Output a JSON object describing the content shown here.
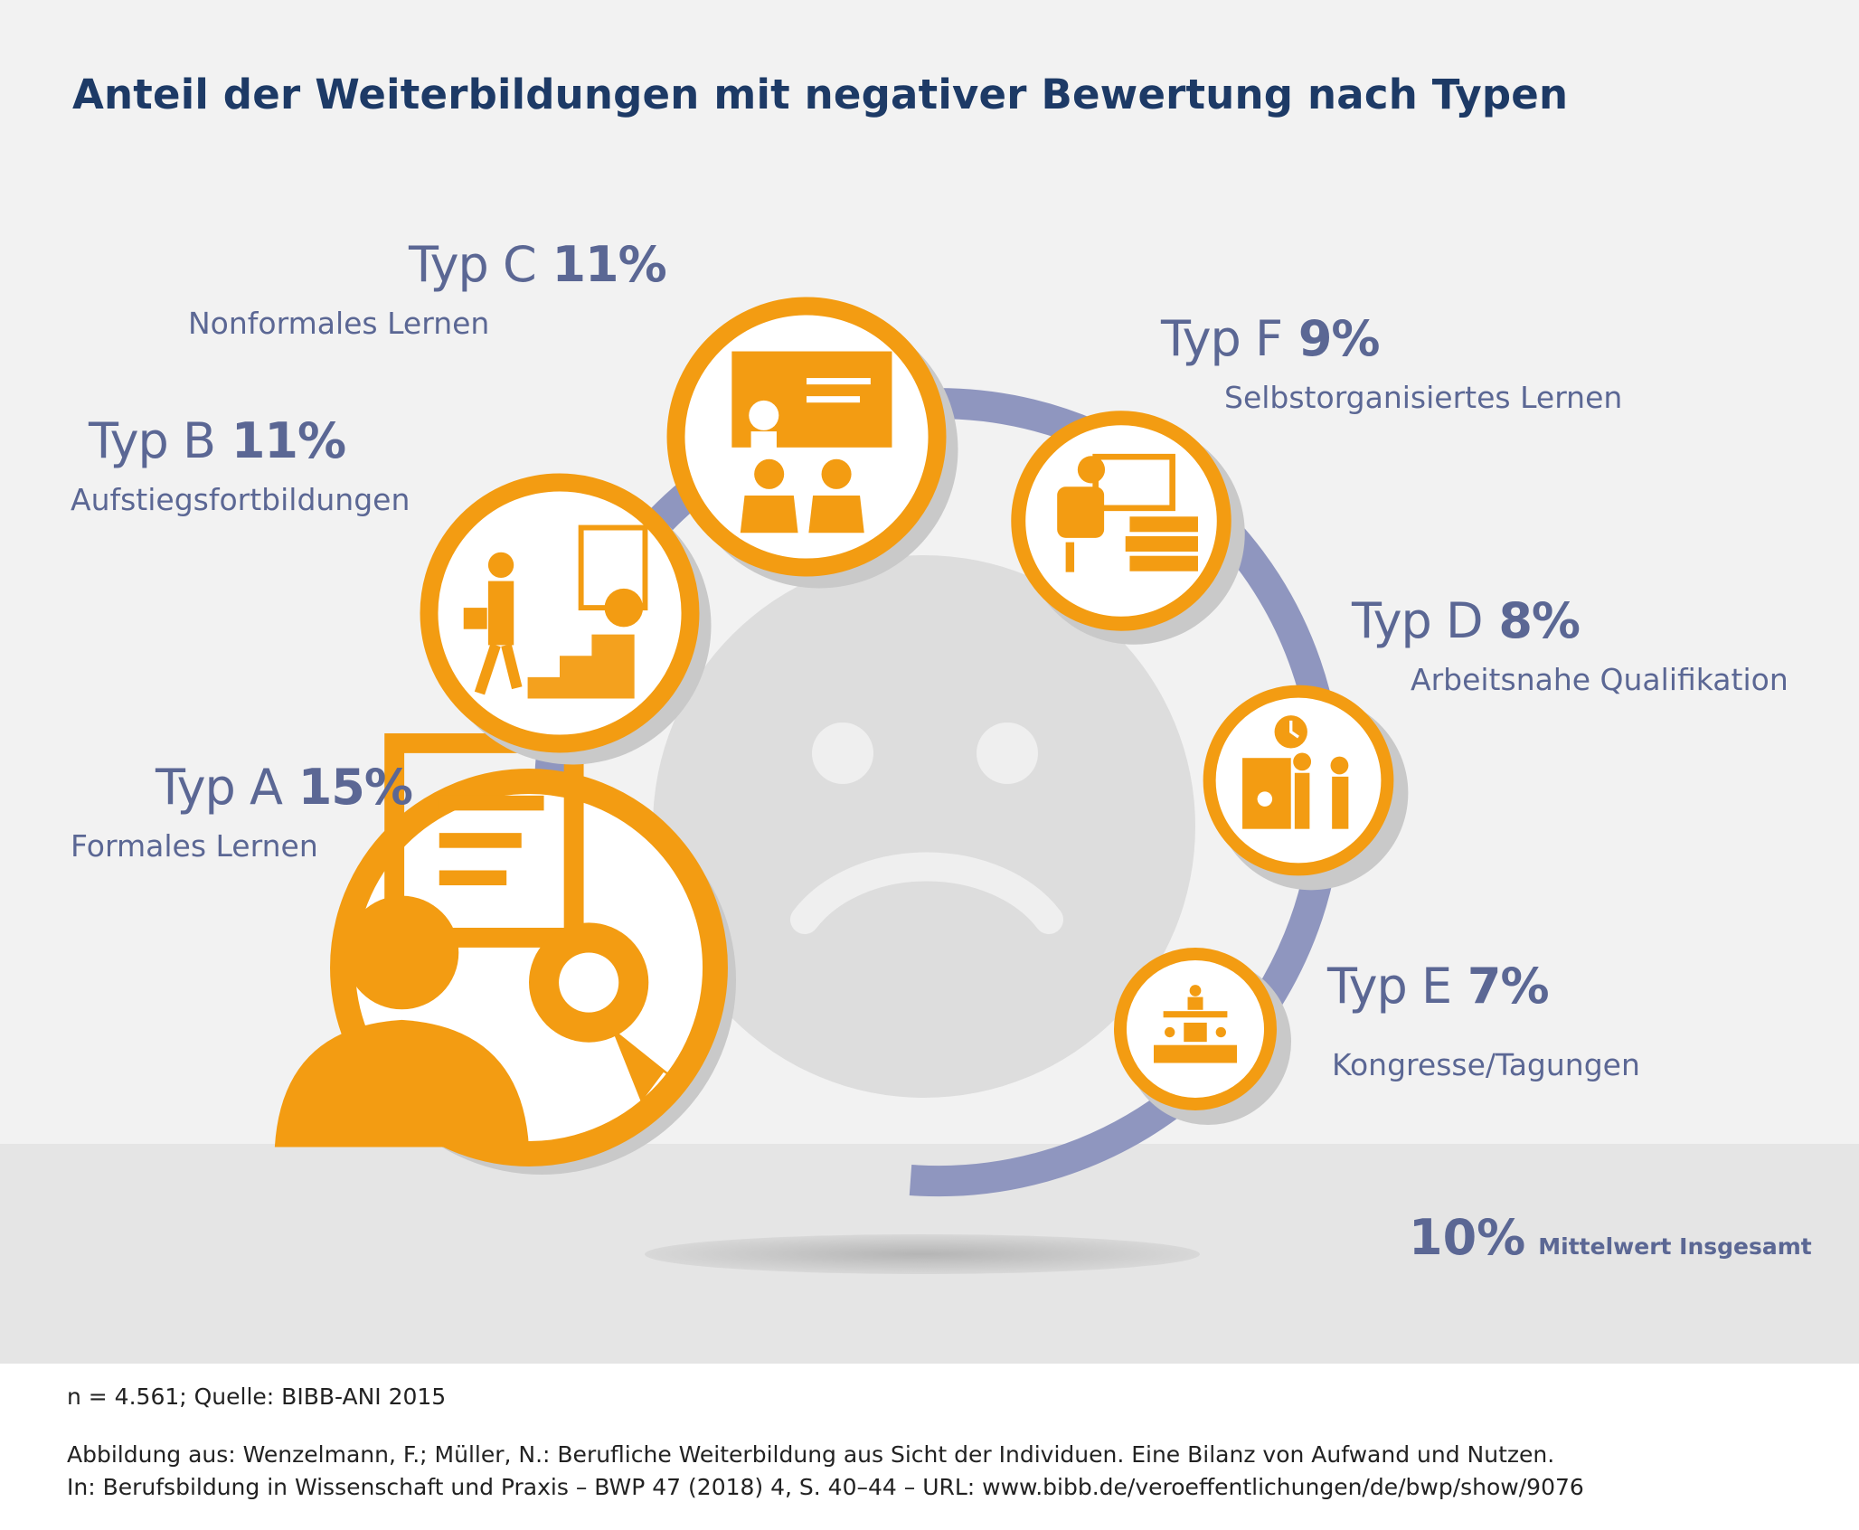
{
  "title": "Anteil der Weiterbildungen mit negativer Bewertung nach Typen",
  "chart_data": {
    "type": "bubble",
    "title": "Anteil der Weiterbildungen mit negativer Bewertung nach Typen",
    "unit": "%",
    "series": [
      {
        "id": "A",
        "label": "Typ A",
        "value": 15,
        "value_label": "15%",
        "description": "Formales Lernen",
        "icon": "graduate-certificate-icon"
      },
      {
        "id": "B",
        "label": "Typ B",
        "value": 11,
        "value_label": "11%",
        "description": "Aufstiegsfortbildungen",
        "icon": "career-stairs-icon"
      },
      {
        "id": "C",
        "label": "Typ C",
        "value": 11,
        "value_label": "11%",
        "description": "Nonformales Lernen",
        "icon": "presentation-icon"
      },
      {
        "id": "F",
        "label": "Typ F",
        "value": 9,
        "value_label": "9%",
        "description": "Selbstorganisiertes Lernen",
        "icon": "computer-books-icon"
      },
      {
        "id": "D",
        "label": "Typ D",
        "value": 8,
        "value_label": "8%",
        "description": "Arbeitsnahe Qualifikation",
        "icon": "workplace-training-icon"
      },
      {
        "id": "E",
        "label": "Typ E",
        "value": 7,
        "value_label": "7%",
        "description": "Kongresse/Tagungen",
        "icon": "conference-icon"
      }
    ],
    "mean": {
      "value": 10,
      "value_label": "10%",
      "label": "Mittelwert Insgesamt"
    }
  },
  "colors": {
    "accent": "#f39c12",
    "arc": "#8f96bf",
    "label": "#5b6794",
    "title": "#1d3a66",
    "face": "#dddddd"
  },
  "footer": {
    "source": "n = 4.561; Quelle: BIBB-ANI 2015",
    "citation_line1": "Abbildung aus: Wenzelmann, F.; Müller, N.: Berufliche Weiterbildung aus Sicht der Individuen. Eine Bilanz von Aufwand und Nutzen.",
    "citation_line2": "In: Berufsbildung in Wissenschaft und Praxis – BWP 47 (2018) 4, S. 40–44 – URL: www.bibb.de/veroeffentlichungen/de/bwp/show/9076"
  }
}
